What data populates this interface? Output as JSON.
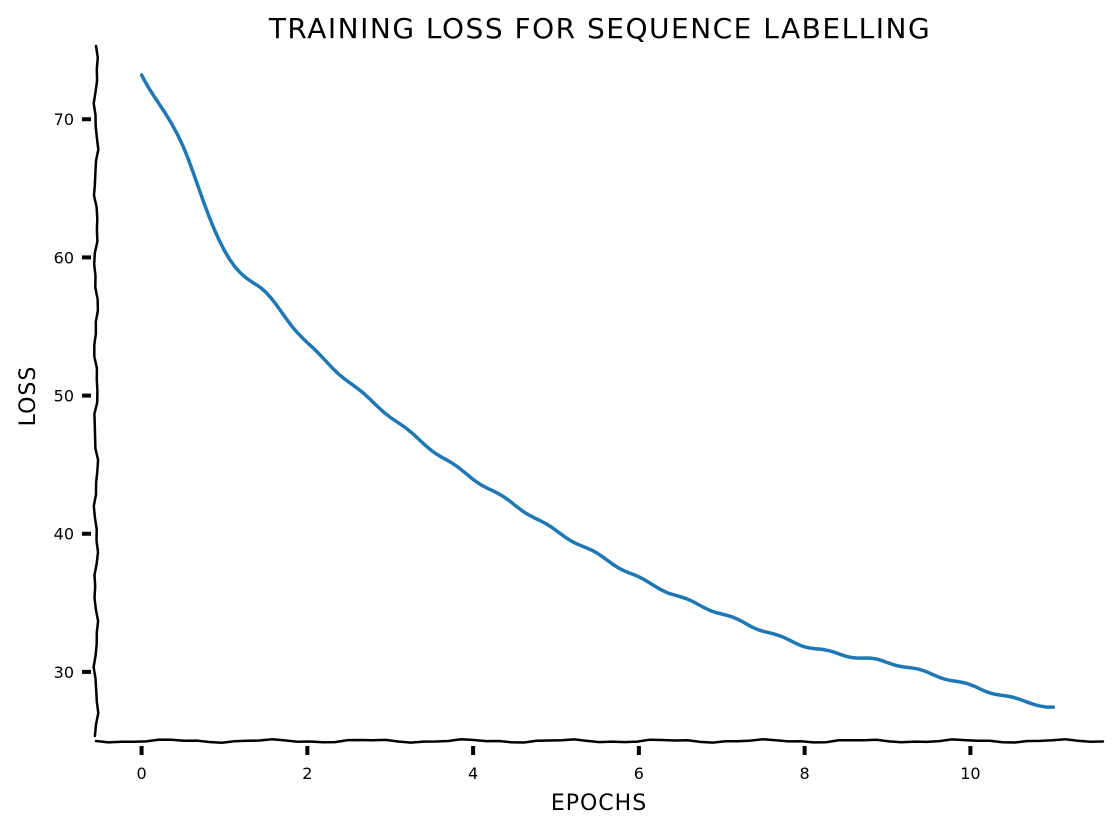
{
  "chart_data": {
    "type": "line",
    "title": "TRAINING LOSS FOR SEQUENCE LABELLING",
    "xlabel": "EPOCHS",
    "ylabel": "LOSS",
    "xlim": [
      -0.55,
      11.6
    ],
    "ylim": [
      25.0,
      75.3
    ],
    "xticks": [
      0,
      2,
      4,
      6,
      8,
      10
    ],
    "yticks": [
      30,
      40,
      50,
      60,
      70
    ],
    "grid": false,
    "legend": "none",
    "color": "#1f77b4",
    "x": [
      0,
      0.5,
      1,
      1.5,
      2,
      2.5,
      3,
      3.5,
      4,
      4.5,
      5,
      5.5,
      6,
      6.5,
      7,
      7.5,
      8,
      8.5,
      9,
      9.5,
      10,
      10.5,
      11
    ],
    "y": [
      73.2,
      68.0,
      60.4,
      57.4,
      53.8,
      51.0,
      48.5,
      46.1,
      44.0,
      42.1,
      40.2,
      38.5,
      36.8,
      35.4,
      34.2,
      33.0,
      31.9,
      31.2,
      30.7,
      29.9,
      29.0,
      28.1,
      27.4
    ]
  }
}
